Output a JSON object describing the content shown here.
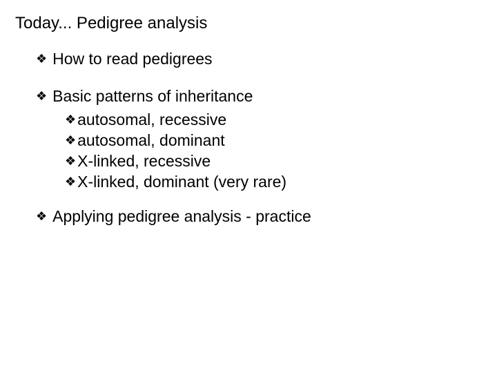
{
  "title": "Today... Pedigree analysis",
  "bullet_glyph": "❖",
  "text_color": "#000000",
  "background_color": "#ffffff",
  "title_fontsize": 24,
  "body_fontsize": 23,
  "items": {
    "l1_0": "How to read pedigrees",
    "l1_1": "Basic patterns of inheritance",
    "l2_0": "autosomal, recessive",
    "l2_1": "autosomal, dominant",
    "l2_2": "X-linked, recessive",
    "l2_3": "X-linked, dominant (very rare)",
    "l1_2": "Applying pedigree analysis - practice"
  }
}
